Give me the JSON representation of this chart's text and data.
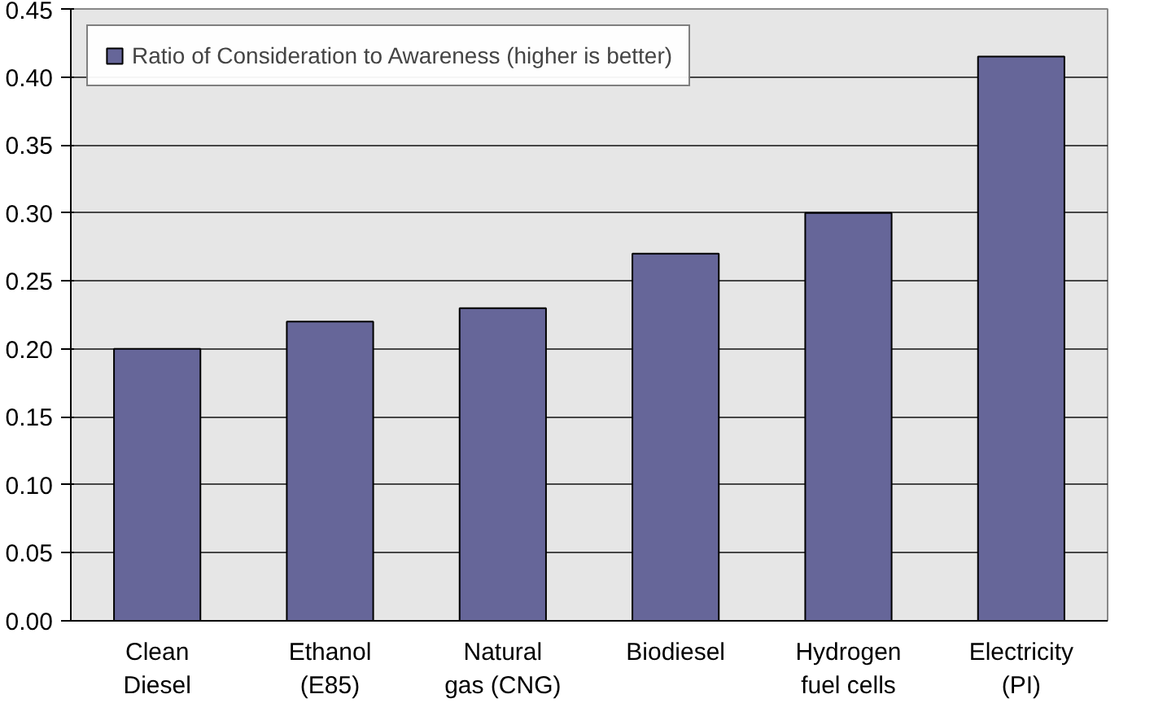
{
  "chart_data": {
    "type": "bar",
    "categories": [
      "Clean Diesel",
      "Ethanol (E85)",
      "Natural gas (CNG)",
      "Biodiesel",
      "Hydrogen fuel cells",
      "Electricity (PI)"
    ],
    "series": [
      {
        "name": "Ratio of Consideration to Awareness (higher is better)",
        "color": "#666699",
        "values": [
          0.2,
          0.22,
          0.23,
          0.27,
          0.3,
          0.415
        ]
      }
    ],
    "ylim": [
      0,
      0.45
    ],
    "yticks": [
      {
        "value": 0,
        "label": "0.00"
      },
      {
        "value": 0.05,
        "label": "0.05"
      },
      {
        "value": 0.1,
        "label": "0.10"
      },
      {
        "value": 0.15,
        "label": "0.15"
      },
      {
        "value": 0.2,
        "label": "0.20"
      },
      {
        "value": 0.25,
        "label": "0.25"
      },
      {
        "value": 0.3,
        "label": "0.30"
      },
      {
        "value": 0.35,
        "label": "0.35"
      },
      {
        "value": 0.4,
        "label": "0.40"
      },
      {
        "value": 0.45,
        "label": "0.45"
      }
    ],
    "grid": "y",
    "legend": "top left"
  }
}
